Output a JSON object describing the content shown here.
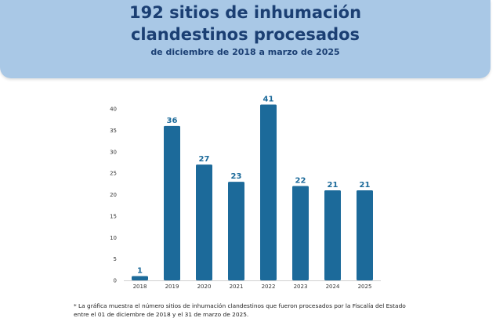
{
  "header": {
    "title_line1": "192 sitios de inhumación",
    "title_line2": "clandestinos procesados",
    "subtitle": "de diciembre de 2018 a marzo de 2025"
  },
  "chart_data": {
    "type": "bar",
    "categories": [
      "2018",
      "2019",
      "2020",
      "2021",
      "2022",
      "2023",
      "2024",
      "2025"
    ],
    "values": [
      1,
      36,
      27,
      23,
      41,
      22,
      21,
      21
    ],
    "ylim": [
      0,
      40
    ],
    "yticks": [
      0,
      5,
      10,
      15,
      20,
      25,
      30,
      35,
      40
    ],
    "bar_color": "#1c6a9a",
    "label_color": "#1c6a9a",
    "grid": false,
    "legend": "none"
  },
  "footnote": "* La gráfica muestra el número sitios de inhumación clandestinos que fueron procesados por la Fiscalía del Estado entre el 01 de diciembre de 2018 y el 31 de marzo de 2025."
}
